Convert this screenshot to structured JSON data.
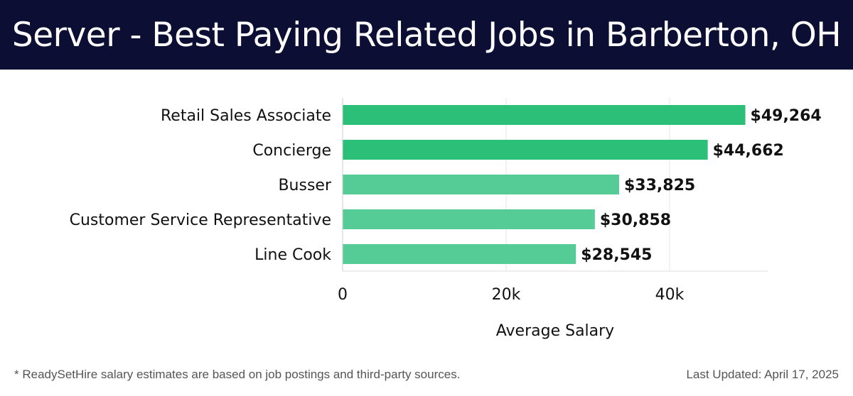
{
  "header": {
    "title": "Server - Best Paying Related Jobs in Barberton, OH"
  },
  "chart_data": {
    "type": "bar",
    "orientation": "horizontal",
    "title": "Server - Best Paying Related Jobs in Barberton, OH",
    "categories": [
      "Retail Sales Associate",
      "Concierge",
      "Busser",
      "Customer Service Representative",
      "Line Cook"
    ],
    "values": [
      49264,
      44662,
      33825,
      30858,
      28545
    ],
    "value_labels": [
      "$49,264",
      "$44,662",
      "$33,825",
      "$30,858",
      "$28,545"
    ],
    "xlabel": "Average Salary",
    "ylabel": "",
    "xlim": [
      0,
      52000
    ],
    "xticks": [
      0,
      20000,
      40000
    ],
    "xtick_labels": [
      "0",
      "20k",
      "40k"
    ],
    "grid": true,
    "colors": {
      "top": "#2bbf78",
      "rest": "#55cc95",
      "header_bg": "#0c0e33"
    }
  },
  "footer": {
    "note": "* ReadySetHire salary estimates are based on job postings and third-party sources.",
    "updated": "Last Updated: April 17, 2025"
  }
}
